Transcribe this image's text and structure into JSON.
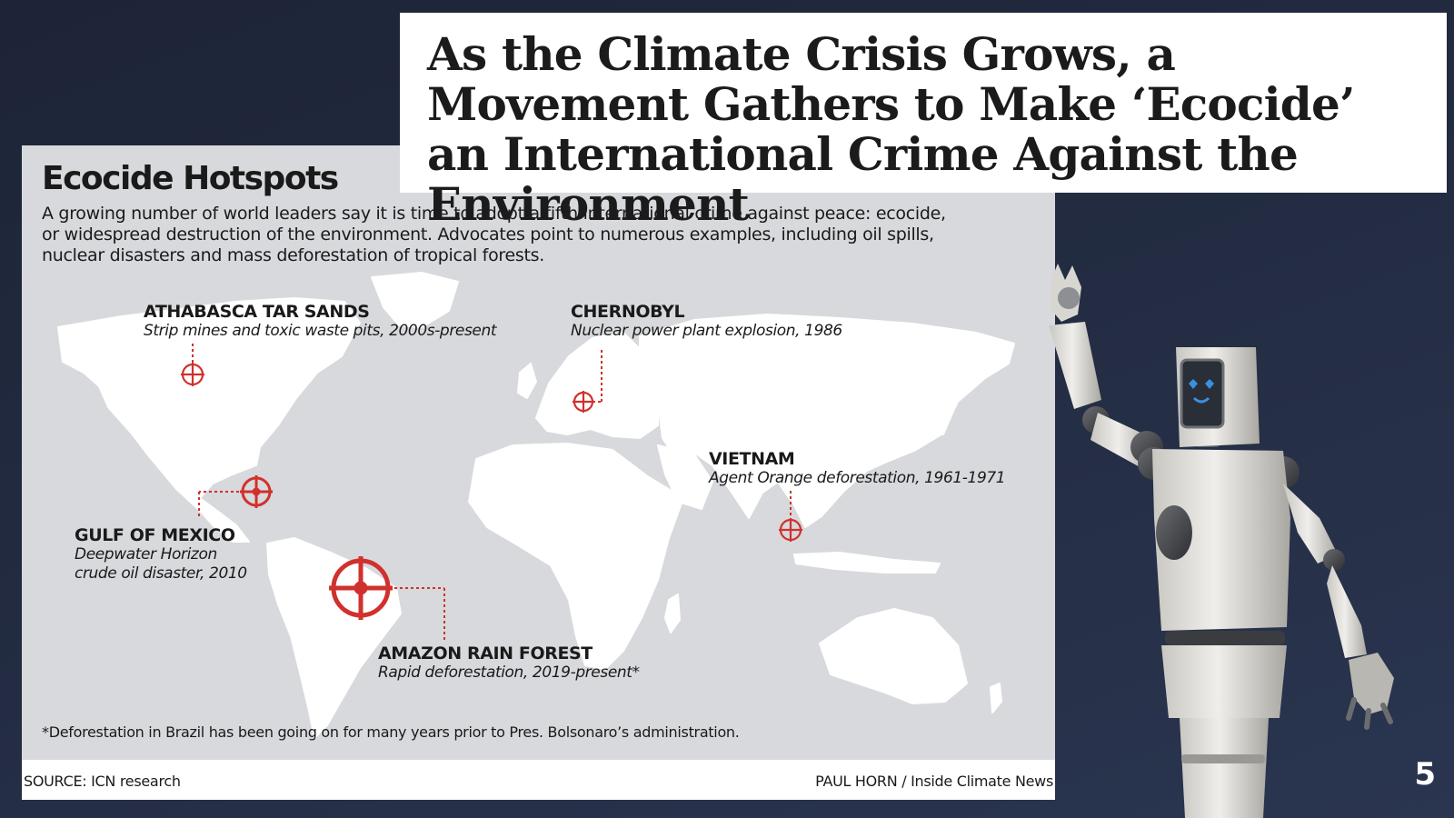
{
  "headline": "As the Climate Crisis Grows, a Movement Gathers to Make ‘Ecocide’ an International Crime Against the Environment",
  "infographic": {
    "title": "Ecocide Hotspots",
    "intro": "A growing number of world leaders say it is time to adopt a fifth international crime against peace: ecocide, or widespread destruction of the environment. Advocates point to numerous examples, including oil spills, nuclear disasters and mass deforestation of tropical forests.",
    "accent_color": "#d0312d",
    "hotspots": [
      {
        "name": "ATHABASCA TAR SANDS",
        "description": "Strip mines and toxic waste pits, 2000s-present"
      },
      {
        "name": "CHERNOBYL",
        "description": "Nuclear power plant explosion, 1986"
      },
      {
        "name": "VIETNAM",
        "description": "Agent Orange deforestation, 1961-1971"
      },
      {
        "name": "GULF OF MEXICO",
        "description": "Deepwater Horizon\ncrude oil disaster, 2010"
      },
      {
        "name": "AMAZON RAIN FOREST",
        "description": "Rapid deforestation, 2019-present*"
      }
    ],
    "footnote": "*Deforestation in Brazil has been going on for many years prior to Pres. Bolsonaro’s administration.",
    "source": "SOURCE: ICN research",
    "credit": "PAUL HORN / Inside Climate News"
  },
  "slide_number": "5"
}
